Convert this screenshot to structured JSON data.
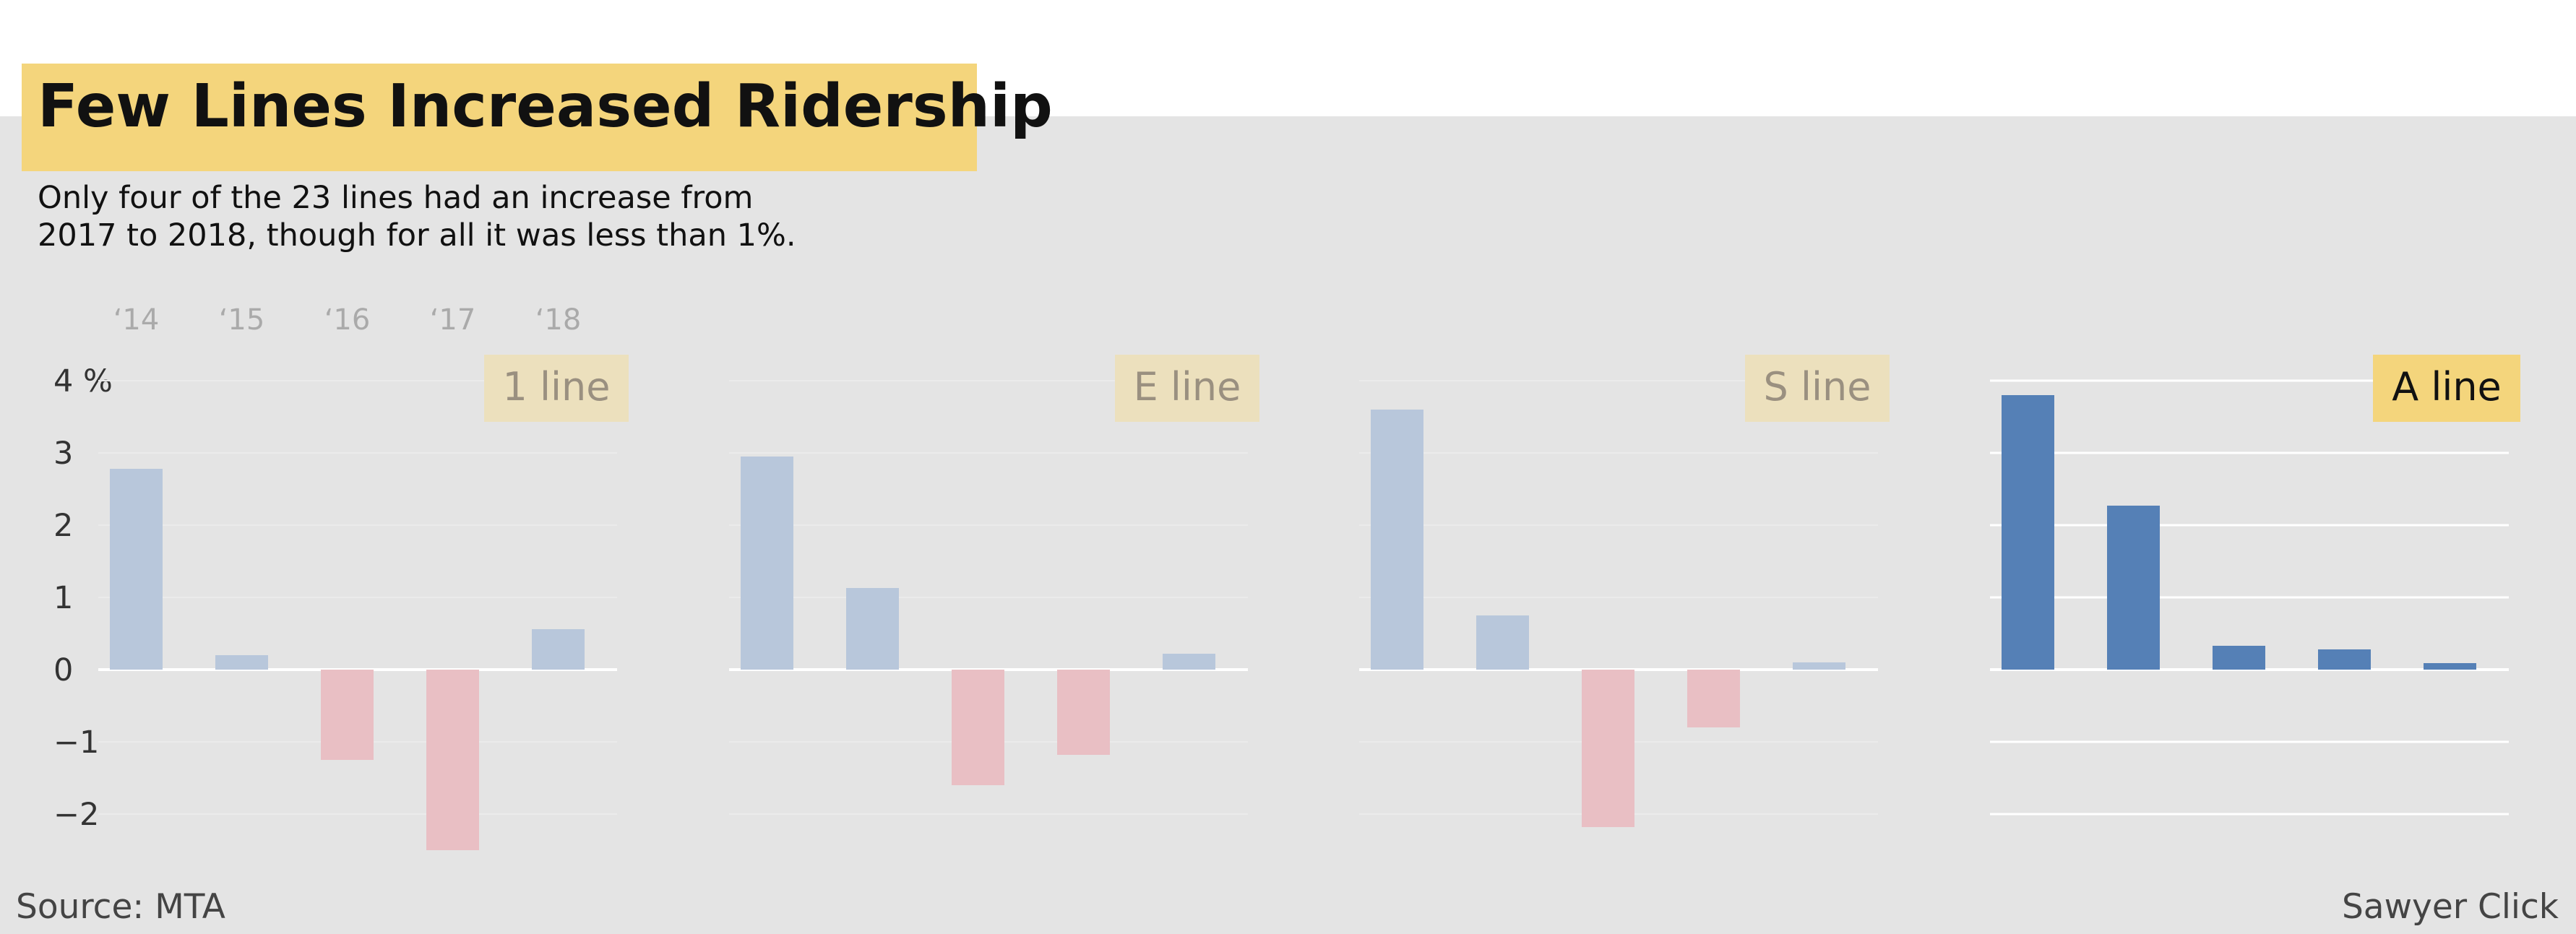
{
  "header": {
    "title": "Few Lines Increased Ridership",
    "subtitle_line1": "Only four of the 23 lines had an increase from",
    "subtitle_line2": "2017 to 2018, though for all it was less than 1%."
  },
  "footer": {
    "source": "Source: MTA",
    "credit": "Sawyer Click"
  },
  "colors": {
    "positive_faded": "#b8c7db",
    "negative_faded": "#e9bfc4",
    "positive_highlight": "#5580b6",
    "label_faded_bg": "#ece0bd",
    "label_faded_text": "#9a9080",
    "label_highlight_bg": "#f4d57c",
    "label_highlight_text": "#111111"
  },
  "chart_data": {
    "type": "bar",
    "categories": [
      "‘14",
      "‘15",
      "‘16",
      "‘17",
      "‘18"
    ],
    "ylim": [
      -2.5,
      4
    ],
    "y_ticks": [
      4,
      3,
      2,
      1,
      0,
      -1,
      -2
    ],
    "y_tick_labels": [
      "4 %",
      "3",
      "2",
      "1",
      "0",
      "−1",
      "−2"
    ],
    "grid": true,
    "series": [
      {
        "name": "1 line",
        "values": [
          2.78,
          0.2,
          -1.25,
          -2.5,
          0.56
        ],
        "highlight": false
      },
      {
        "name": "E line",
        "values": [
          2.95,
          1.13,
          -1.6,
          -1.18,
          0.22
        ],
        "highlight": false
      },
      {
        "name": "S line",
        "values": [
          3.6,
          0.75,
          -2.18,
          -0.8,
          0.1
        ],
        "highlight": false
      },
      {
        "name": "A line",
        "values": [
          3.8,
          2.27,
          0.33,
          0.28,
          0.09
        ],
        "highlight": true
      }
    ]
  }
}
